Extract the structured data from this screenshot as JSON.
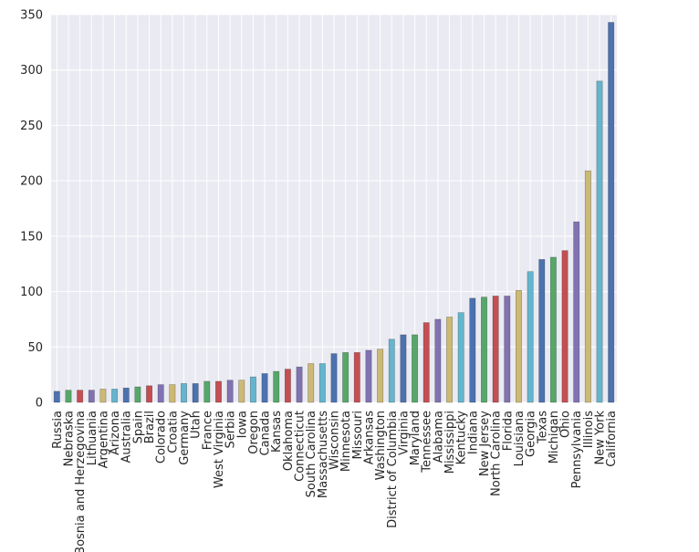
{
  "chart_data": {
    "type": "bar",
    "title": "",
    "xlabel": "",
    "ylabel": "",
    "ylim": [
      0,
      350
    ],
    "yticks": [
      0,
      50,
      100,
      150,
      200,
      250,
      300,
      350
    ],
    "grid": true,
    "background": "#eaeaf2",
    "palette": [
      "#4c72b0",
      "#55a868",
      "#c44e52",
      "#8172b2",
      "#ccb974",
      "#64b5cd"
    ],
    "categories": [
      "Russia",
      "Nebraska",
      "Bosnia and Herzegovina",
      "Lithuania",
      "Argentina",
      "Arizona",
      "Australia",
      "Spain",
      "Brazil",
      "Colorado",
      "Croatia",
      "Germany",
      "Utah",
      "France",
      "West Virginia",
      "Serbia",
      "Iowa",
      "Oregon",
      "Canada",
      "Kansas",
      "Oklahoma",
      "Connecticut",
      "South Carolina",
      "Massachusetts",
      "Wisconsin",
      "Minnesota",
      "Missouri",
      "Arkansas",
      "Washington",
      "District of Columbia",
      "Virginia",
      "Maryland",
      "Tennessee",
      "Alabama",
      "Mississippi",
      "Kentucky",
      "Indiana",
      "New Jersey",
      "North Carolina",
      "Florida",
      "Louisiana",
      "Georgia",
      "Texas",
      "Michigan",
      "Ohio",
      "Pennsylvania",
      "Illinois",
      "New York",
      "California"
    ],
    "values": [
      10,
      11,
      11,
      11,
      12,
      12,
      13,
      14,
      15,
      16,
      16,
      17,
      17,
      19,
      19,
      20,
      20,
      23,
      26,
      28,
      30,
      32,
      35,
      35,
      44,
      45,
      45,
      47,
      48,
      57,
      61,
      61,
      72,
      75,
      77,
      81,
      94,
      95,
      96,
      96,
      101,
      118,
      129,
      131,
      137,
      163,
      209,
      290,
      343
    ]
  }
}
